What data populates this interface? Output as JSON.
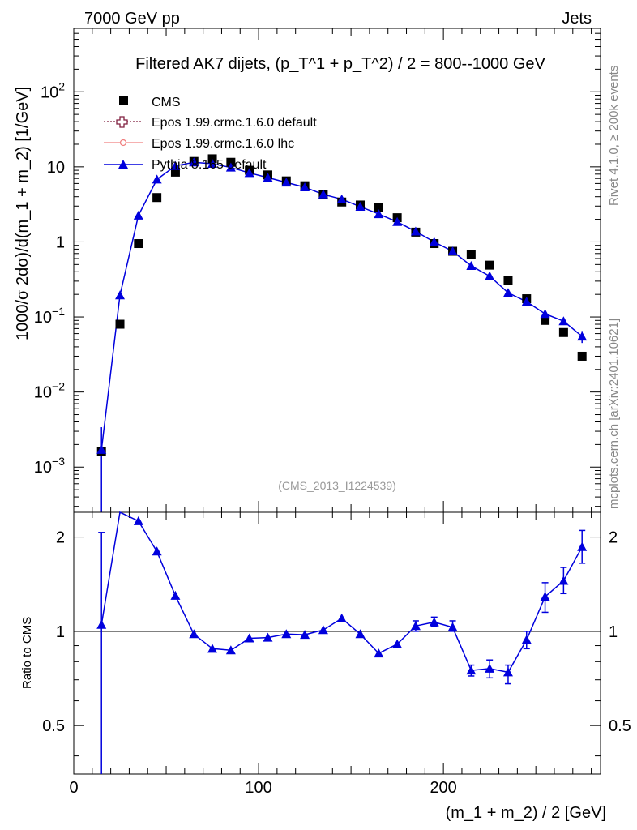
{
  "header": {
    "left": "7000 GeV pp",
    "right": "Jets"
  },
  "side_labels": {
    "rivet": "Rivet 4.1.0, ≥ 200k events",
    "mcplots": "mcplots.cern.ch [arXiv:2401.10621]"
  },
  "colors": {
    "cms": "#000000",
    "epos_default": "#7f1f3f",
    "epos_lhc": "#f08080",
    "pythia": "#0000dd"
  },
  "chart_data": [
    {
      "type": "scatter",
      "panel": "main",
      "title": "Filtered AK7 dijets, (p_T^1 + p_T^2) / 2 = 800--1000 GeV",
      "ylabel": "1000/σ   2dσ)/d(m_1 + m_2) [1/GeV]",
      "watermark": "(CMS_2013_I1224539)",
      "y_scale": "log",
      "xlim": [
        0,
        285
      ],
      "ylim": [
        0.00025,
        700
      ],
      "y_ticks": [
        {
          "value": 0.001,
          "label": "10",
          "exp": "−3"
        },
        {
          "value": 0.01,
          "label": "10",
          "exp": "−2"
        },
        {
          "value": 0.1,
          "label": "10",
          "exp": "−1"
        },
        {
          "value": 1,
          "label": "1",
          "exp": ""
        },
        {
          "value": 10,
          "label": "10",
          "exp": ""
        },
        {
          "value": 100,
          "label": "10",
          "exp": "2"
        }
      ],
      "legend_position": "top-left",
      "legend": [
        {
          "name": "CMS",
          "key": "cms"
        },
        {
          "name": "Epos 1.99.crmc.1.6.0 default",
          "key": "epos_default"
        },
        {
          "name": "Epos 1.99.crmc.1.6.0 lhc",
          "key": "epos_lhc"
        },
        {
          "name": "Pythia 8.165 default",
          "key": "pythia"
        }
      ],
      "x": [
        15,
        25,
        35,
        45,
        55,
        65,
        75,
        85,
        95,
        105,
        115,
        125,
        135,
        145,
        155,
        165,
        175,
        185,
        195,
        205,
        215,
        225,
        235,
        245,
        255,
        265,
        275
      ],
      "series": [
        {
          "name": "CMS",
          "values": [
            0.0016,
            0.08,
            0.95,
            3.9,
            8.5,
            11.8,
            12.8,
            11.5,
            9.0,
            7.8,
            6.5,
            5.6,
            4.3,
            3.4,
            3.1,
            2.85,
            2.1,
            1.35,
            0.95,
            0.75,
            0.68,
            0.49,
            0.31,
            0.175,
            0.09,
            0.062,
            0.03
          ]
        },
        {
          "name": "Pythia 8.165 default",
          "values": [
            0.0017,
            0.195,
            2.25,
            6.8,
            10.3,
            11.5,
            11.0,
            9.8,
            8.3,
            7.2,
            6.2,
            5.35,
            4.3,
            3.7,
            2.95,
            2.35,
            1.85,
            1.38,
            1.0,
            0.75,
            0.48,
            0.35,
            0.21,
            0.16,
            0.11,
            0.088,
            0.055
          ],
          "errors": [
            0.0017,
            0,
            0,
            0,
            0,
            0,
            0,
            0,
            0,
            0,
            0,
            0,
            0,
            0,
            0,
            0,
            0,
            0,
            0,
            0,
            0,
            0,
            0,
            0.012,
            0.012,
            0.01,
            0.01
          ]
        }
      ]
    },
    {
      "type": "line",
      "panel": "ratio",
      "ylabel": "Ratio to CMS",
      "xlabel": "(m_1 + m_2) / 2 [GeV]",
      "y_scale": "log",
      "xlim": [
        0,
        285
      ],
      "ylim": [
        0.35,
        2.4
      ],
      "y_ticks": [
        0.5,
        1,
        2
      ],
      "x_ticks": [
        0,
        100,
        200
      ],
      "reference": 1,
      "x": [
        15,
        25,
        35,
        45,
        55,
        65,
        75,
        85,
        95,
        105,
        115,
        125,
        135,
        145,
        155,
        165,
        175,
        185,
        195,
        205,
        215,
        225,
        235,
        245,
        255,
        265,
        275
      ],
      "series": [
        {
          "name": "Pythia 8.165 default",
          "values": [
            1.05,
            2.44,
            2.25,
            1.8,
            1.3,
            0.98,
            0.88,
            0.87,
            0.95,
            0.955,
            0.98,
            0.975,
            1.01,
            1.1,
            0.98,
            0.85,
            0.91,
            1.04,
            1.07,
            1.03,
            0.75,
            0.76,
            0.74,
            0.94,
            1.29,
            1.45,
            1.86
          ],
          "err_hi": [
            2.07,
            2.44,
            2.25,
            1.8,
            1.3,
            0.98,
            0.88,
            0.87,
            0.95,
            0.955,
            0.98,
            0.975,
            1.01,
            1.1,
            0.98,
            0.85,
            0.91,
            1.08,
            1.11,
            1.08,
            0.78,
            0.81,
            0.78,
            1.0,
            1.43,
            1.6,
            2.1
          ],
          "err_lo": [
            0.35,
            2.44,
            2.25,
            1.8,
            1.3,
            0.98,
            0.88,
            0.87,
            0.95,
            0.955,
            0.98,
            0.975,
            1.01,
            1.1,
            0.98,
            0.85,
            0.91,
            1.0,
            1.04,
            1.0,
            0.72,
            0.71,
            0.68,
            0.88,
            1.15,
            1.32,
            1.65
          ]
        }
      ]
    }
  ]
}
